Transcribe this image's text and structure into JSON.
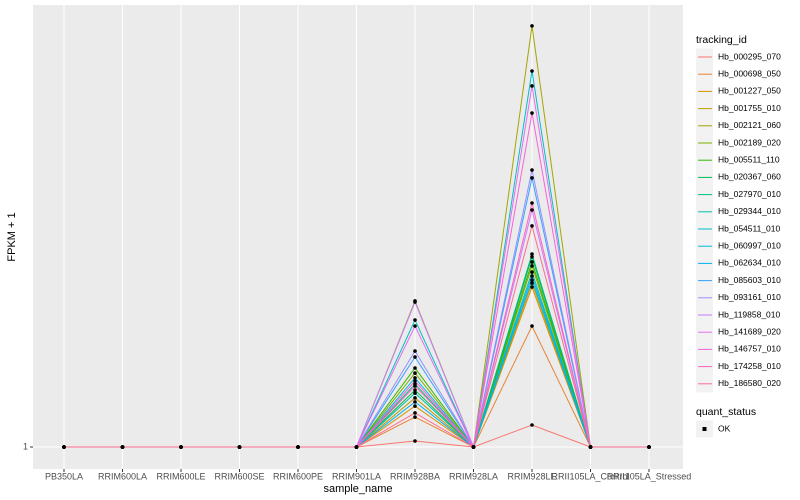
{
  "chart_data": {
    "type": "line",
    "x_label": "sample_name",
    "y_label": "FPKM + 1",
    "categories": [
      "PB350LA",
      "RRIM600LA",
      "RRIM600LE",
      "RRIM600SE",
      "RRIM600PE",
      "RRIM901LA",
      "RRIM928BA",
      "RRIM928LA",
      "RRIM928LE",
      "RRII105LA_Control",
      "RRII105LA_Stressed"
    ],
    "ylim": [
      0,
      21.09
    ],
    "yticks": [
      1
    ],
    "grid": true,
    "legend_title": "tracking_id",
    "point_legend": {
      "title": "quant_status",
      "labels": [
        "OK"
      ]
    },
    "series": [
      {
        "name": "Hb_000295_070",
        "color": "#F8766D",
        "values": [
          1,
          1,
          1,
          1,
          1,
          1,
          1.27,
          1,
          2.0,
          1,
          1
        ]
      },
      {
        "name": "Hb_000698_050",
        "color": "#EA8331",
        "values": [
          1,
          1,
          1,
          1,
          1,
          1,
          2.36,
          1,
          6.5,
          1,
          1
        ]
      },
      {
        "name": "Hb_001227_050",
        "color": "#D89000",
        "values": [
          1,
          1,
          1,
          1,
          1,
          1,
          2.86,
          1,
          8.27,
          1,
          1
        ]
      },
      {
        "name": "Hb_001755_010",
        "color": "#C09B00",
        "values": [
          1,
          1,
          1,
          1,
          1,
          1,
          3.23,
          1,
          8.45,
          1,
          1
        ]
      },
      {
        "name": "Hb_002121_060",
        "color": "#A3A500",
        "values": [
          1,
          1,
          1,
          1,
          1,
          1,
          7.64,
          1,
          20.14,
          1,
          1
        ]
      },
      {
        "name": "Hb_002189_020",
        "color": "#7CAE00",
        "values": [
          1,
          1,
          1,
          1,
          1,
          1,
          4.36,
          1,
          9.23,
          1,
          1
        ]
      },
      {
        "name": "Hb_005511_110",
        "color": "#39B600",
        "values": [
          1,
          1,
          1,
          1,
          1,
          1,
          4.59,
          1,
          9.41,
          1,
          1
        ]
      },
      {
        "name": "Hb_020367_060",
        "color": "#00BB4E",
        "values": [
          1,
          1,
          1,
          1,
          1,
          1,
          3.59,
          1,
          9.64,
          1,
          1
        ]
      },
      {
        "name": "Hb_027970_010",
        "color": "#00BF7D",
        "values": [
          1,
          1,
          1,
          1,
          1,
          1,
          3.86,
          1,
          9.77,
          1,
          1
        ]
      },
      {
        "name": "Hb_029344_010",
        "color": "#00C1A3",
        "values": [
          1,
          1,
          1,
          1,
          1,
          1,
          3.45,
          1,
          8.95,
          1,
          1
        ]
      },
      {
        "name": "Hb_054511_010",
        "color": "#00BFC4",
        "values": [
          1,
          1,
          1,
          1,
          1,
          1,
          6.77,
          1,
          18.09,
          1,
          1
        ]
      },
      {
        "name": "Hb_060997_010",
        "color": "#00BAE0",
        "values": [
          1,
          1,
          1,
          1,
          1,
          1,
          4.14,
          1,
          8.59,
          1,
          1
        ]
      },
      {
        "name": "Hb_062634_010",
        "color": "#00B0F6",
        "values": [
          1,
          1,
          1,
          1,
          1,
          1,
          3.05,
          1,
          8.77,
          1,
          1
        ]
      },
      {
        "name": "Hb_085603_010",
        "color": "#35A2FF",
        "values": [
          1,
          1,
          1,
          1,
          1,
          1,
          5.09,
          1,
          13.23,
          1,
          1
        ]
      },
      {
        "name": "Hb_093161_010",
        "color": "#9590FF",
        "values": [
          1,
          1,
          1,
          1,
          1,
          1,
          5.36,
          1,
          13.59,
          1,
          1
        ]
      },
      {
        "name": "Hb_119858_010",
        "color": "#C77CFF",
        "values": [
          1,
          1,
          1,
          1,
          1,
          1,
          7.59,
          1,
          11.77,
          1,
          1
        ]
      },
      {
        "name": "Hb_141689_020",
        "color": "#E76BF3",
        "values": [
          1,
          1,
          1,
          1,
          1,
          1,
          6.5,
          1,
          17.41,
          1,
          1
        ]
      },
      {
        "name": "Hb_146757_010",
        "color": "#FA62DB",
        "values": [
          1,
          1,
          1,
          1,
          1,
          1,
          4.0,
          1,
          16.18,
          1,
          1
        ]
      },
      {
        "name": "Hb_174258_010",
        "color": "#FF62BC",
        "values": [
          1,
          1,
          1,
          1,
          1,
          1,
          3.77,
          1,
          12.09,
          1,
          1
        ]
      },
      {
        "name": "Hb_186580_020",
        "color": "#FF6C91",
        "values": [
          1,
          1,
          1,
          1,
          1,
          1,
          2.55,
          1,
          11.05,
          1,
          1
        ]
      }
    ]
  }
}
